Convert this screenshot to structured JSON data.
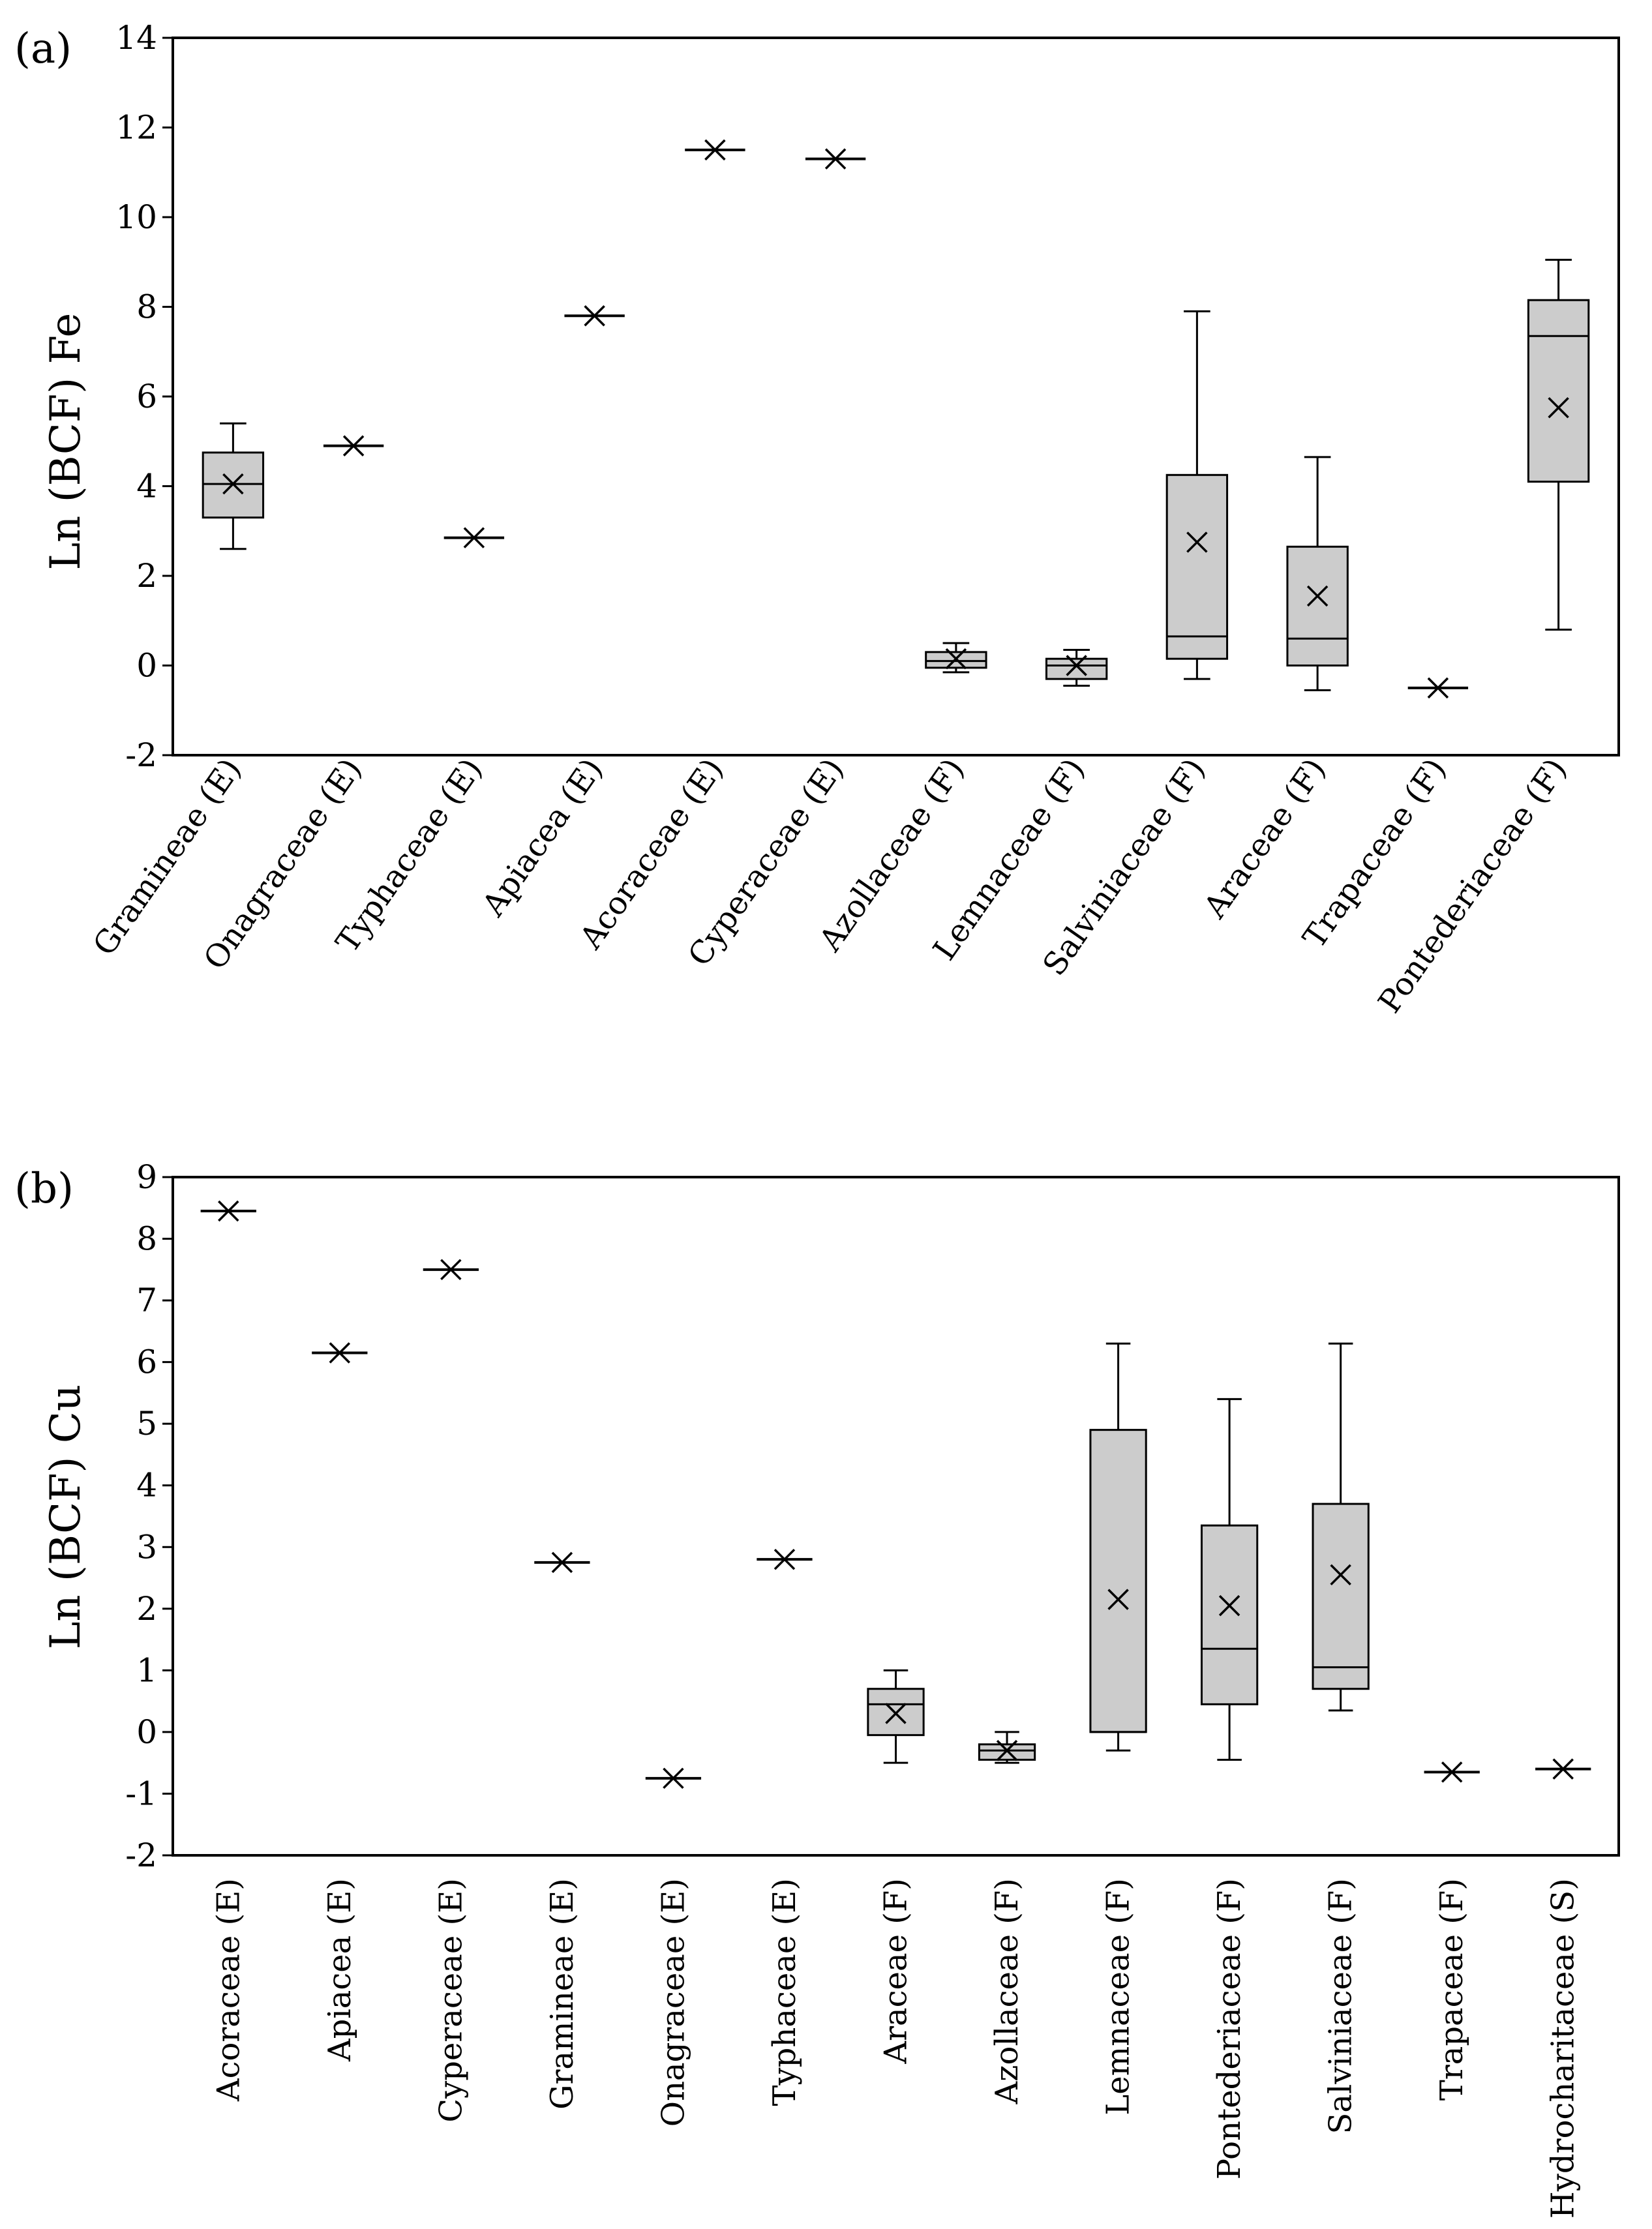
{
  "chart_data": [
    {
      "type": "boxplot",
      "panel_label": "(a)",
      "title": "",
      "xlabel": "",
      "ylabel": "Ln (BCF) Fe",
      "ylim": [
        -2,
        14
      ],
      "yticks": [
        14,
        12,
        10,
        8,
        6,
        4,
        2,
        0,
        -2
      ],
      "grid": false,
      "xtick_rotation": "diagonal",
      "categories": [
        "Gramineae (E)",
        "Onagraceae (E)",
        "Typhaceae (E)",
        "Apiacea (E)",
        "Acoraceae (E)",
        "Cyperaceae (E)",
        "Azollaceae (F)",
        "Lemnaceae (F)",
        "Salviniaceae (F)",
        "Araceae (F)",
        "Trapaceae (F)",
        "Pontederiaceae (F)"
      ],
      "boxes": [
        {
          "min": 2.6,
          "q1": 3.3,
          "median": 4.05,
          "q3": 4.75,
          "max": 5.4,
          "mean": 4.05
        },
        {
          "min": 4.9,
          "q1": 4.9,
          "median": 4.9,
          "q3": 4.9,
          "max": 4.9,
          "mean": 4.9
        },
        {
          "min": 2.85,
          "q1": 2.85,
          "median": 2.85,
          "q3": 2.85,
          "max": 2.85,
          "mean": 2.85
        },
        {
          "min": 7.8,
          "q1": 7.8,
          "median": 7.8,
          "q3": 7.8,
          "max": 7.8,
          "mean": 7.8
        },
        {
          "min": 11.5,
          "q1": 11.5,
          "median": 11.5,
          "q3": 11.5,
          "max": 11.5,
          "mean": 11.5
        },
        {
          "min": 11.3,
          "q1": 11.3,
          "median": 11.3,
          "q3": 11.3,
          "max": 11.3,
          "mean": 11.3
        },
        {
          "min": -0.15,
          "q1": -0.05,
          "median": 0.1,
          "q3": 0.3,
          "max": 0.5,
          "mean": 0.15
        },
        {
          "min": -0.45,
          "q1": -0.3,
          "median": 0.0,
          "q3": 0.15,
          "max": 0.35,
          "mean": 0.0
        },
        {
          "min": -0.3,
          "q1": 0.15,
          "median": 0.65,
          "q3": 4.25,
          "max": 7.9,
          "mean": 2.75
        },
        {
          "min": -0.55,
          "q1": 0.0,
          "median": 0.6,
          "q3": 2.65,
          "max": 4.65,
          "mean": 1.55
        },
        {
          "min": -0.5,
          "q1": -0.5,
          "median": -0.5,
          "q3": -0.5,
          "max": -0.5,
          "mean": -0.5
        },
        {
          "min": 0.8,
          "q1": 4.1,
          "median": 7.35,
          "q3": 8.15,
          "max": 9.05,
          "mean": 5.75
        }
      ],
      "colors": {
        "box_fill": "#cccccc",
        "stroke": "#000000"
      }
    },
    {
      "type": "boxplot",
      "panel_label": "(b)",
      "title": "",
      "xlabel": "",
      "ylabel": "Ln (BCF) Cu",
      "ylim": [
        -2,
        9
      ],
      "yticks": [
        9,
        8,
        7,
        6,
        5,
        4,
        3,
        2,
        1,
        0,
        -1,
        -2
      ],
      "grid": false,
      "xtick_rotation": "vertical",
      "categories": [
        "Acoraceae (E)",
        "Apiacea (E)",
        "Cyperaceae (E)",
        "Gramineae (E)",
        "Onagraceae (E)",
        "Typhaceae (E)",
        "Araceae (F)",
        "Azollaceae (F)",
        "Lemnaceae (F)",
        "Pontederiaceae (F)",
        "Salviniaceae (F)",
        "Trapaceae (F)",
        "Hydrocharitaceae (S)"
      ],
      "boxes": [
        {
          "min": 8.45,
          "q1": 8.45,
          "median": 8.45,
          "q3": 8.45,
          "max": 8.45,
          "mean": 8.45
        },
        {
          "min": 6.15,
          "q1": 6.15,
          "median": 6.15,
          "q3": 6.15,
          "max": 6.15,
          "mean": 6.15
        },
        {
          "min": 7.5,
          "q1": 7.5,
          "median": 7.5,
          "q3": 7.5,
          "max": 7.5,
          "mean": 7.5
        },
        {
          "min": 2.75,
          "q1": 2.75,
          "median": 2.75,
          "q3": 2.75,
          "max": 2.75,
          "mean": 2.75
        },
        {
          "min": -0.75,
          "q1": -0.75,
          "median": -0.75,
          "q3": -0.75,
          "max": -0.75,
          "mean": -0.75
        },
        {
          "min": 2.8,
          "q1": 2.8,
          "median": 2.8,
          "q3": 2.8,
          "max": 2.8,
          "mean": 2.8
        },
        {
          "min": -0.5,
          "q1": -0.05,
          "median": 0.45,
          "q3": 0.7,
          "max": 1.0,
          "mean": 0.3
        },
        {
          "min": -0.5,
          "q1": -0.45,
          "median": -0.3,
          "q3": -0.2,
          "max": 0.0,
          "mean": -0.3
        },
        {
          "min": -0.3,
          "q1": 0.0,
          "median": 0.0,
          "q3": 4.9,
          "max": 6.3,
          "mean": 2.15
        },
        {
          "min": -0.45,
          "q1": 0.45,
          "median": 1.35,
          "q3": 3.35,
          "max": 5.4,
          "mean": 2.05
        },
        {
          "min": 0.35,
          "q1": 0.7,
          "median": 1.05,
          "q3": 3.7,
          "max": 6.3,
          "mean": 2.55
        },
        {
          "min": -0.65,
          "q1": -0.65,
          "median": -0.65,
          "q3": -0.65,
          "max": -0.65,
          "mean": -0.65
        },
        {
          "min": -0.6,
          "q1": -0.6,
          "median": -0.6,
          "q3": -0.6,
          "max": -0.6,
          "mean": -0.6
        }
      ],
      "colors": {
        "box_fill": "#cccccc",
        "stroke": "#000000"
      }
    }
  ]
}
